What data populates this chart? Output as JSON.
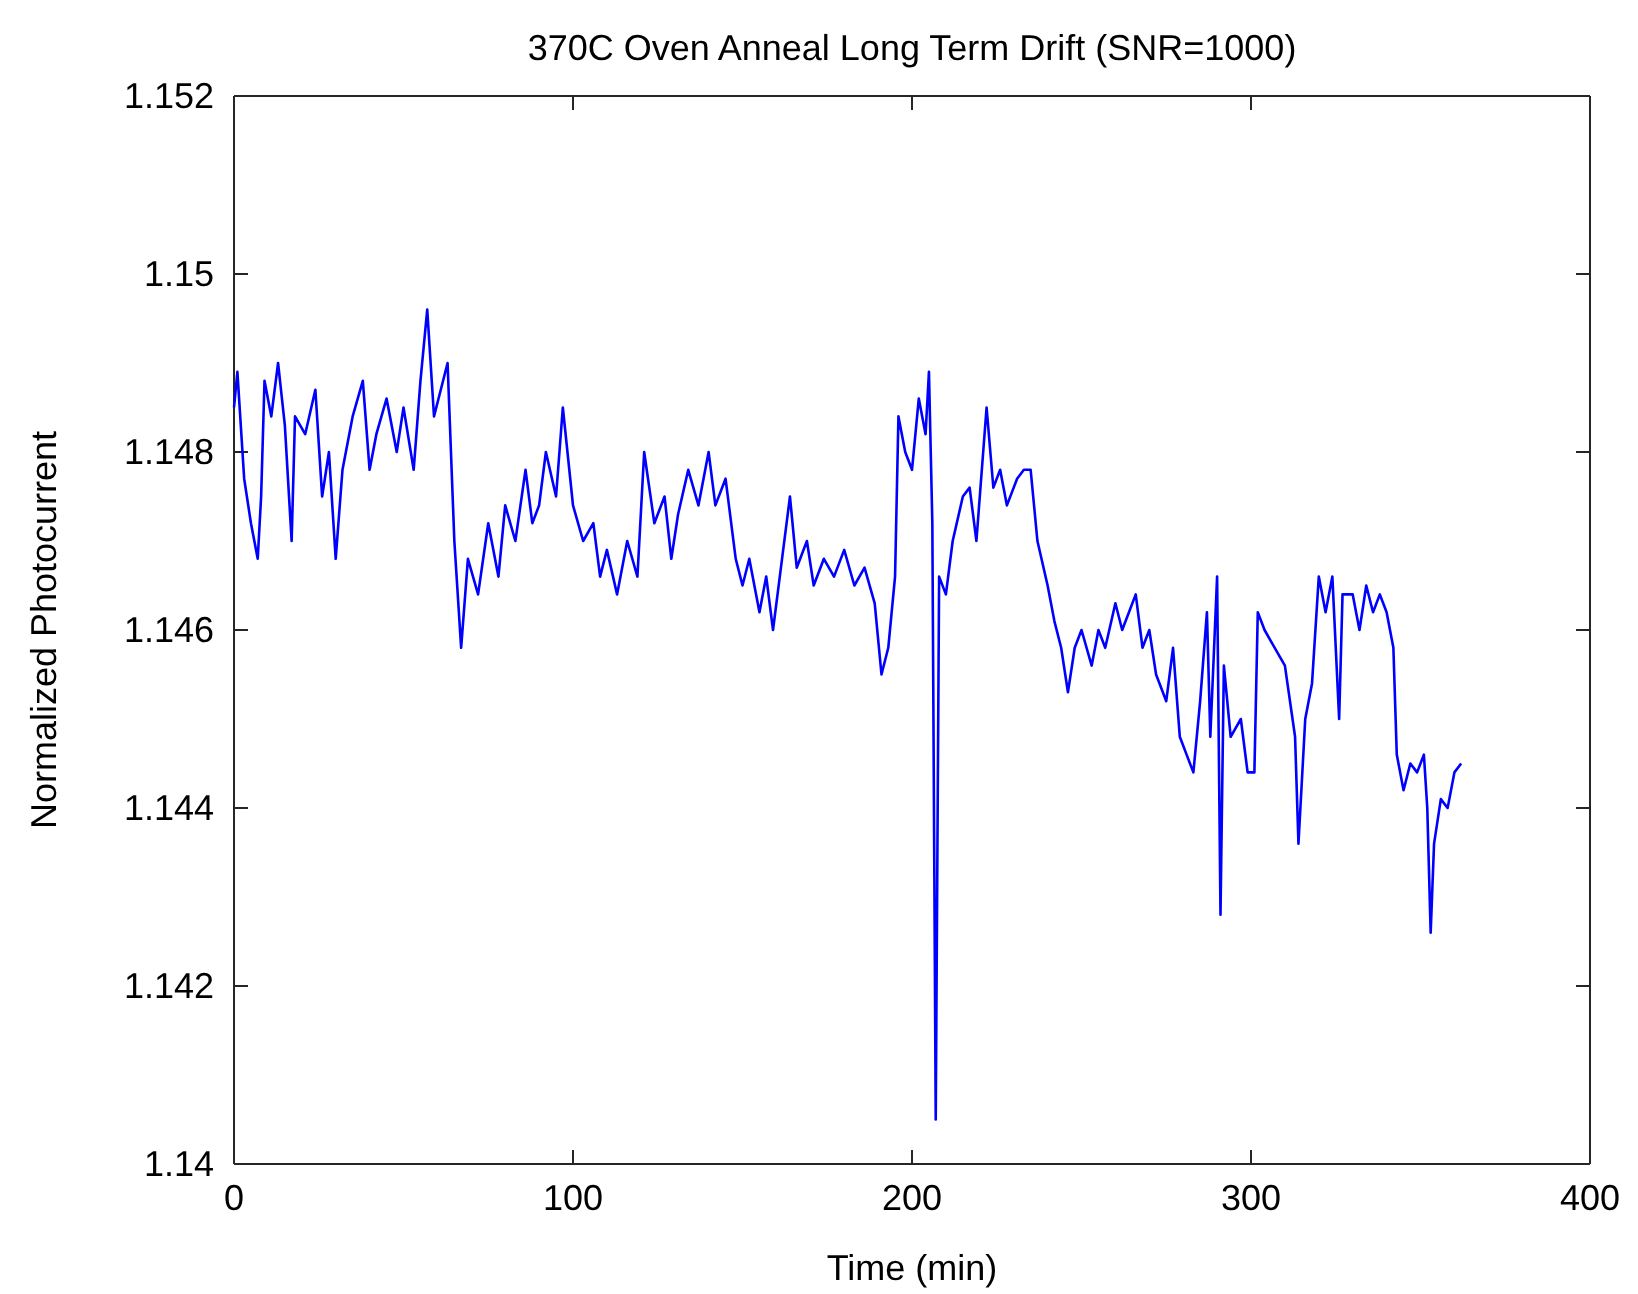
{
  "chart_data": {
    "type": "line",
    "title": "370C Oven Anneal Long Term Drift (SNR=1000)",
    "xlabel": "Time (min)",
    "ylabel": "Normalized Photocurrent",
    "xlim": [
      0,
      400
    ],
    "xticks": [
      0,
      100,
      200,
      300,
      400
    ],
    "ylim": [
      1.14,
      1.152
    ],
    "yticks": [
      {
        "value": 1.14,
        "label": "1.14"
      },
      {
        "value": 1.142,
        "label": "1.142"
      },
      {
        "value": 1.144,
        "label": "1.144"
      },
      {
        "value": 1.146,
        "label": "1.146"
      },
      {
        "value": 1.148,
        "label": "1.148"
      },
      {
        "value": 1.15,
        "label": "1.15"
      },
      {
        "value": 1.152,
        "label": "1.152"
      }
    ],
    "grid": false,
    "marker": "none",
    "line_style": "solid",
    "series": [
      {
        "color": "#0000ff",
        "x": [
          0,
          1,
          3,
          5,
          7,
          8,
          9,
          11,
          13,
          15,
          17,
          18,
          21,
          24,
          26,
          28,
          30,
          32,
          35,
          38,
          40,
          42,
          45,
          48,
          50,
          53,
          55,
          57,
          59,
          61,
          63,
          65,
          67,
          69,
          72,
          75,
          78,
          80,
          83,
          86,
          88,
          90,
          92,
          95,
          97,
          100,
          103,
          106,
          108,
          110,
          113,
          116,
          119,
          121,
          124,
          127,
          129,
          131,
          134,
          137,
          140,
          142,
          145,
          148,
          150,
          152,
          155,
          157,
          159,
          161,
          164,
          166,
          169,
          171,
          174,
          177,
          180,
          183,
          186,
          189,
          191,
          193,
          195,
          196,
          198,
          200,
          202,
          204,
          205,
          206,
          207,
          208,
          210,
          212,
          215,
          217,
          219,
          221,
          222,
          224,
          226,
          228,
          231,
          233,
          235,
          237,
          240,
          242,
          244,
          246,
          248,
          250,
          253,
          255,
          257,
          260,
          262,
          264,
          266,
          268,
          270,
          272,
          275,
          277,
          279,
          281,
          283,
          285,
          287,
          288,
          290,
          291,
          292,
          294,
          297,
          299,
          301,
          302,
          304,
          307,
          310,
          313,
          314,
          316,
          318,
          320,
          322,
          324,
          326,
          327,
          330,
          332,
          334,
          336,
          338,
          340,
          342,
          343,
          345,
          347,
          349,
          351,
          352,
          353,
          354,
          356,
          358,
          360,
          362
        ],
        "values": [
          1.1485,
          1.1489,
          1.1477,
          1.1472,
          1.1468,
          1.1475,
          1.1488,
          1.1484,
          1.149,
          1.1483,
          1.147,
          1.1484,
          1.1482,
          1.1487,
          1.1475,
          1.148,
          1.1468,
          1.1478,
          1.1484,
          1.1488,
          1.1478,
          1.1482,
          1.1486,
          1.148,
          1.1485,
          1.1478,
          1.1488,
          1.1496,
          1.1484,
          1.1487,
          1.149,
          1.147,
          1.1458,
          1.1468,
          1.1464,
          1.1472,
          1.1466,
          1.1474,
          1.147,
          1.1478,
          1.1472,
          1.1474,
          1.148,
          1.1475,
          1.1485,
          1.1474,
          1.147,
          1.1472,
          1.1466,
          1.1469,
          1.1464,
          1.147,
          1.1466,
          1.148,
          1.1472,
          1.1475,
          1.1468,
          1.1473,
          1.1478,
          1.1474,
          1.148,
          1.1474,
          1.1477,
          1.1468,
          1.1465,
          1.1468,
          1.1462,
          1.1466,
          1.146,
          1.1466,
          1.1475,
          1.1467,
          1.147,
          1.1465,
          1.1468,
          1.1466,
          1.1469,
          1.1465,
          1.1467,
          1.1463,
          1.1455,
          1.1458,
          1.1466,
          1.1484,
          1.148,
          1.1478,
          1.1486,
          1.1482,
          1.1489,
          1.1472,
          1.1405,
          1.1466,
          1.1464,
          1.147,
          1.1475,
          1.1476,
          1.147,
          1.148,
          1.1485,
          1.1476,
          1.1478,
          1.1474,
          1.1477,
          1.1478,
          1.1478,
          1.147,
          1.1465,
          1.1461,
          1.1458,
          1.1453,
          1.1458,
          1.146,
          1.1456,
          1.146,
          1.1458,
          1.1463,
          1.146,
          1.1462,
          1.1464,
          1.1458,
          1.146,
          1.1455,
          1.1452,
          1.1458,
          1.1448,
          1.1446,
          1.1444,
          1.1452,
          1.1462,
          1.1448,
          1.1466,
          1.1428,
          1.1456,
          1.1448,
          1.145,
          1.1444,
          1.1444,
          1.1462,
          1.146,
          1.1458,
          1.1456,
          1.1448,
          1.1436,
          1.145,
          1.1454,
          1.1466,
          1.1462,
          1.1466,
          1.145,
          1.1464,
          1.1464,
          1.146,
          1.1465,
          1.1462,
          1.1464,
          1.1462,
          1.1458,
          1.1446,
          1.1442,
          1.1445,
          1.1444,
          1.1446,
          1.144,
          1.1426,
          1.1436,
          1.1441,
          1.144,
          1.1444,
          1.1445
        ]
      }
    ]
  }
}
